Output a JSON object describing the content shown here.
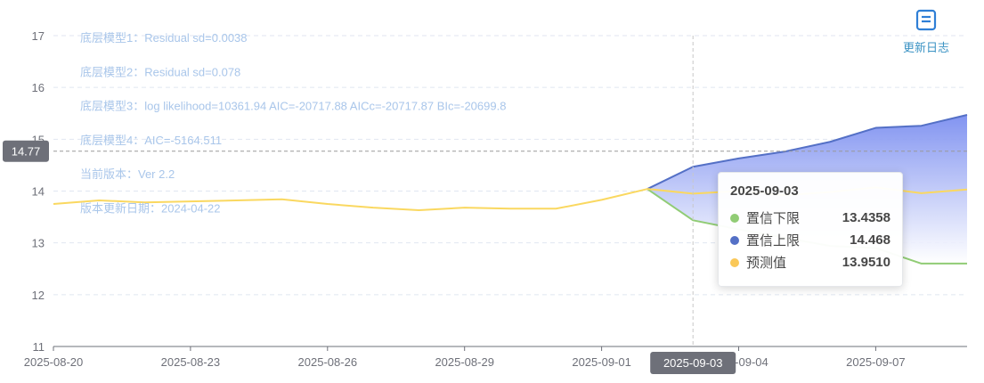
{
  "toolbox": {
    "update_log_label": "更新日志",
    "update_log_icon": "document-lines-icon"
  },
  "notes": [
    "底层模型1：Residual sd=0.0038",
    "底层模型2：Residual sd=0.078",
    "底层模型3：log likelihood=10361.94 AIC=-20717.88 AICc=-20717.87 BIc=-20699.8",
    "底层模型4：AIC=-5164.511",
    "当前版本：Ver 2.2",
    "版本更新日期：2024-04-22"
  ],
  "cursor": {
    "x_label": "2025-09-03",
    "y_label": "14.77"
  },
  "tooltip": {
    "title": "2025-09-03",
    "rows": [
      {
        "name": "置信下限",
        "value": "13.4358",
        "color": "#91cc75"
      },
      {
        "name": "置信上限",
        "value": "14.468",
        "color": "#5470c6"
      },
      {
        "name": "预测值",
        "value": "13.9510",
        "color": "#fac858"
      }
    ]
  },
  "chart_data": {
    "type": "line",
    "x": [
      "2025-08-20",
      "2025-08-21",
      "2025-08-22",
      "2025-08-23",
      "2025-08-24",
      "2025-08-25",
      "2025-08-26",
      "2025-08-27",
      "2025-08-28",
      "2025-08-29",
      "2025-08-30",
      "2025-08-31",
      "2025-09-01",
      "2025-09-02",
      "2025-09-03",
      "2025-09-04",
      "2025-09-05",
      "2025-09-06",
      "2025-09-07",
      "2025-09-08",
      "2025-09-09"
    ],
    "x_tick_labels": [
      "2025-08-20",
      "2025-08-23",
      "2025-08-26",
      "2025-08-29",
      "2025-09-01",
      "2025-09-04",
      "2025-09-07"
    ],
    "ylim": [
      11,
      17
    ],
    "y_ticks": [
      11,
      12,
      13,
      14,
      15,
      16,
      17
    ],
    "grid": true,
    "series": [
      {
        "name": "预测值",
        "color": "#fad860",
        "values": [
          13.75,
          13.82,
          13.78,
          13.8,
          13.82,
          13.84,
          13.75,
          13.68,
          13.63,
          13.68,
          13.66,
          13.66,
          13.83,
          14.04,
          13.951,
          14.0,
          13.92,
          13.98,
          14.07,
          13.96,
          14.03
        ]
      },
      {
        "name": "置信下限",
        "color": "#91cc75",
        "values": [
          null,
          null,
          null,
          null,
          null,
          null,
          null,
          null,
          null,
          null,
          null,
          null,
          null,
          14.04,
          13.4358,
          13.26,
          13.1,
          12.94,
          12.9,
          12.6,
          12.6
        ]
      },
      {
        "name": "置信上限",
        "color": "#5470c6",
        "values": [
          null,
          null,
          null,
          null,
          null,
          null,
          null,
          null,
          null,
          null,
          null,
          null,
          null,
          14.04,
          14.468,
          14.63,
          14.76,
          14.95,
          15.22,
          15.26,
          15.47
        ]
      }
    ]
  }
}
